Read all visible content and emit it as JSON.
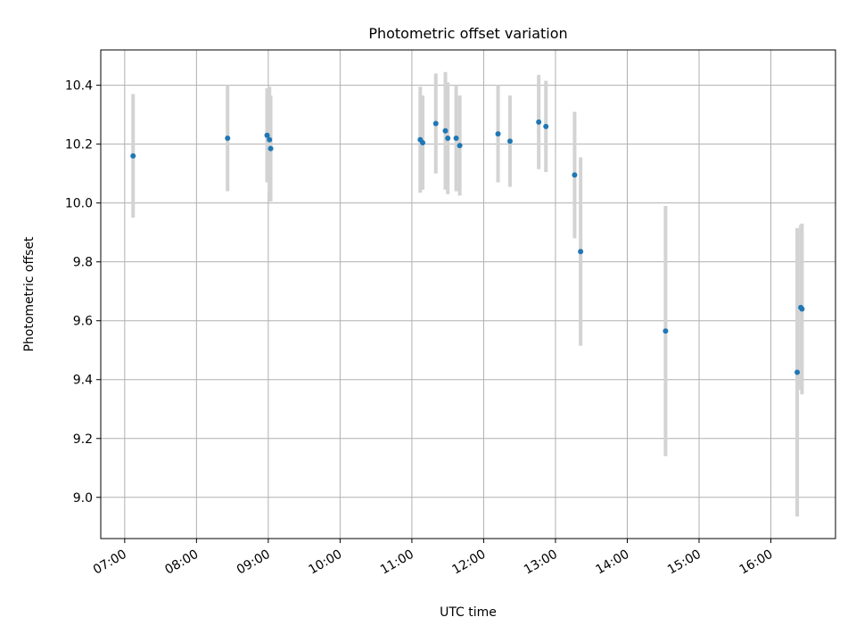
{
  "chart_data": {
    "type": "scatter",
    "title": "Photometric offset variation",
    "xlabel": "UTC time",
    "ylabel": "Photometric offset",
    "x_ticks": [
      "07:00",
      "08:00",
      "09:00",
      "10:00",
      "11:00",
      "12:00",
      "13:00",
      "14:00",
      "15:00",
      "16:00"
    ],
    "y_ticks": [
      "9.0",
      "9.2",
      "9.4",
      "9.6",
      "9.8",
      "10.0",
      "10.2",
      "10.4"
    ],
    "xlim": [
      "06:40",
      "16:54"
    ],
    "ylim": [
      8.86,
      10.52
    ],
    "grid": true,
    "colors": {
      "marker": "#1f77b4",
      "errorbar": "#d3d3d3",
      "grid": "#b0b0b0"
    },
    "points": [
      {
        "x": "07:07",
        "y": 10.16,
        "yerr": 0.21
      },
      {
        "x": "08:26",
        "y": 10.22,
        "yerr": 0.18
      },
      {
        "x": "08:59",
        "y": 10.23,
        "yerr": 0.16
      },
      {
        "x": "09:01",
        "y": 10.215,
        "yerr": 0.18
      },
      {
        "x": "09:02",
        "y": 10.185,
        "yerr": 0.18
      },
      {
        "x": "11:07",
        "y": 10.215,
        "yerr": 0.18
      },
      {
        "x": "11:09",
        "y": 10.205,
        "yerr": 0.16
      },
      {
        "x": "11:20",
        "y": 10.27,
        "yerr": 0.17
      },
      {
        "x": "11:28",
        "y": 10.245,
        "yerr": 0.2
      },
      {
        "x": "11:30",
        "y": 10.22,
        "yerr": 0.19
      },
      {
        "x": "11:37",
        "y": 10.22,
        "yerr": 0.18
      },
      {
        "x": "11:40",
        "y": 10.195,
        "yerr": 0.17
      },
      {
        "x": "12:12",
        "y": 10.235,
        "yerr": 0.165
      },
      {
        "x": "12:22",
        "y": 10.21,
        "yerr": 0.155
      },
      {
        "x": "12:46",
        "y": 10.275,
        "yerr": 0.16
      },
      {
        "x": "12:52",
        "y": 10.26,
        "yerr": 0.155
      },
      {
        "x": "13:16",
        "y": 10.095,
        "yerr": 0.215
      },
      {
        "x": "13:21",
        "y": 9.835,
        "yerr": 0.32
      },
      {
        "x": "14:32",
        "y": 9.565,
        "yerr": 0.425
      },
      {
        "x": "16:22",
        "y": 9.425,
        "yerr": 0.49
      },
      {
        "x": "16:25",
        "y": 9.645,
        "yerr": 0.28
      },
      {
        "x": "16:26",
        "y": 9.64,
        "yerr": 0.29
      }
    ]
  }
}
